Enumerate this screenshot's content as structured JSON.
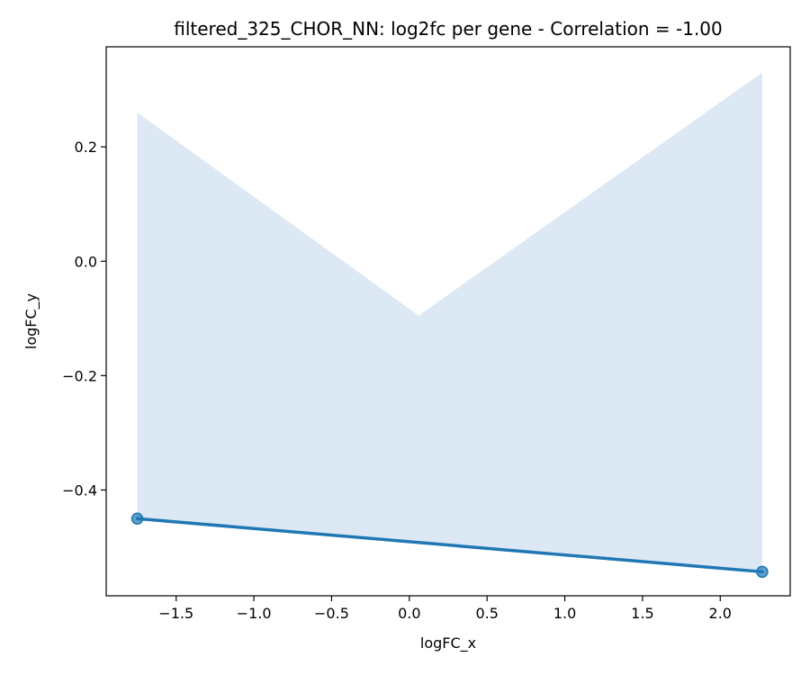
{
  "chart_data": {
    "type": "scatter",
    "title": "filtered_325_CHOR_NN: log2fc per gene - Correlation = -1.00",
    "xlabel": "logFC_x",
    "ylabel": "logFC_y",
    "xlim": [
      -1.95,
      2.45
    ],
    "ylim": [
      -0.585,
      0.375
    ],
    "x_ticks": [
      -1.5,
      -1.0,
      -0.5,
      0.0,
      0.5,
      1.0,
      1.5,
      2.0
    ],
    "x_tick_labels": [
      "−1.5",
      "−1.0",
      "−0.5",
      "0.0",
      "0.5",
      "1.0",
      "1.5",
      "2.0"
    ],
    "y_ticks": [
      -0.4,
      -0.2,
      0.0,
      0.2
    ],
    "y_tick_labels": [
      "−0.4",
      "−0.2",
      "0.0",
      "0.2"
    ],
    "points": [
      {
        "x": -1.75,
        "y": -0.45
      },
      {
        "x": 2.27,
        "y": -0.543
      }
    ],
    "regression_line": {
      "x": [
        -1.75,
        2.27
      ],
      "y": [
        -0.45,
        -0.543
      ]
    },
    "confidence_band": {
      "x": [
        -1.75,
        0.06,
        2.27
      ],
      "upper": [
        0.26,
        -0.095,
        0.33
      ],
      "lower": [
        -0.45,
        -0.492,
        -0.543
      ]
    },
    "grid": false,
    "colors": {
      "line": "#1f77b4",
      "band": "#dce9f4",
      "point": "#1f77b4"
    }
  }
}
